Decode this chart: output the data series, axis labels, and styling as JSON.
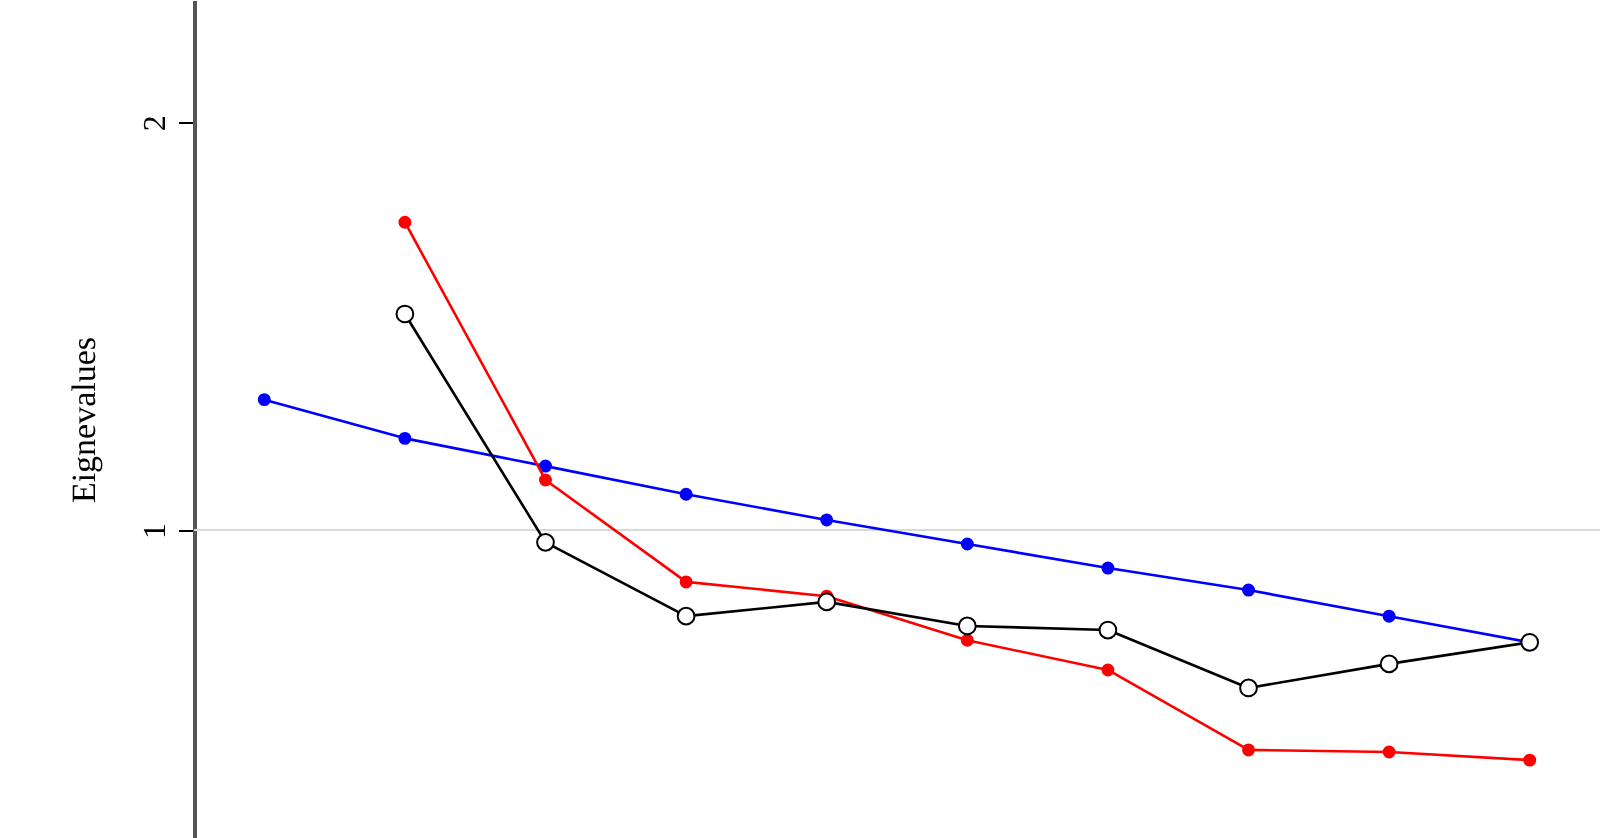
{
  "chart_data": {
    "type": "line",
    "ylabel": "Eignevalues",
    "categories": [
      null,
      null,
      null,
      null,
      null,
      null,
      null,
      null,
      null,
      null
    ],
    "ylim": [
      0.245,
      2.3
    ],
    "yticks": [
      1,
      2
    ],
    "tick_labels": "y",
    "grid": false,
    "marker": "circle",
    "line_style": "solid",
    "ref_lines": [
      {
        "axis": "y",
        "value": 1,
        "color": "#d9d9d9"
      }
    ],
    "series": [
      {
        "color": "#0000ff",
        "values": [
          1.32,
          1.225,
          1.157,
          1.088,
          1.025,
          0.966,
          0.907,
          0.853,
          0.789,
          0.725
        ]
      },
      {
        "color": "#ff0000",
        "values": [
          null,
          1.755,
          1.123,
          0.873,
          0.838,
          0.73,
          0.657,
          0.461,
          0.456,
          0.436
        ]
      },
      {
        "color": "#000000",
        "values": [
          null,
          1.53,
          0.97,
          0.789,
          0.824,
          0.765,
          0.755,
          0.613,
          0.672,
          0.725
        ]
      }
    ]
  }
}
